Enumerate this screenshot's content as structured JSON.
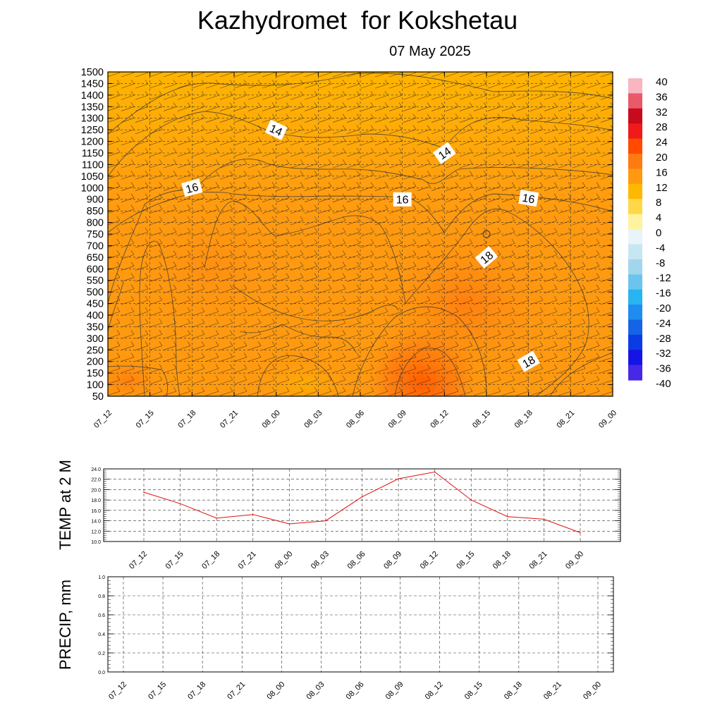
{
  "title": "Kazhydromet  for Kokshetau",
  "subtitle": "07 May 2025",
  "time_labels": [
    "07_12",
    "07_15",
    "07_18",
    "07_21",
    "08_00",
    "08_03",
    "08_06",
    "08_09",
    "08_12",
    "08_15",
    "08_18",
    "08_21",
    "09_00"
  ],
  "chart_data": [
    {
      "type": "heatmap",
      "name": "cross-section",
      "x": [
        "07_12",
        "07_15",
        "07_18",
        "07_21",
        "08_00",
        "08_03",
        "08_06",
        "08_09",
        "08_12",
        "08_15",
        "08_18",
        "08_21",
        "09_00"
      ],
      "y_ticks": [
        50,
        100,
        150,
        200,
        250,
        300,
        350,
        400,
        450,
        500,
        550,
        600,
        650,
        700,
        750,
        800,
        850,
        900,
        1000,
        1050,
        1100,
        1150,
        1200,
        1250,
        1300,
        1350,
        1400,
        1450,
        1500
      ],
      "ylim": [
        50,
        1500
      ],
      "colorbar": {
        "ticks": [
          40,
          36,
          32,
          28,
          24,
          20,
          16,
          12,
          8,
          4,
          0,
          -4,
          -8,
          -12,
          -16,
          -20,
          -24,
          -28,
          -32,
          -36,
          -40
        ],
        "colors": {
          "40": "#f7b6c0",
          "36": "#e85a6a",
          "32": "#c80a1a",
          "28": "#f01a1a",
          "24": "#ff4a00",
          "20": "#ff7a10",
          "16": "#ff9a10",
          "12": "#ffb800",
          "8": "#ffd84a",
          "4": "#fff3a0",
          "0": "#e8f4f8",
          "-4": "#c6e6f2",
          "-8": "#a2d6ee",
          "-12": "#6cc4ee",
          "-16": "#28b4f0",
          "-20": "#1e8cf0",
          "-24": "#1464e6",
          "-28": "#0a3ce6",
          "-32": "#1414e6",
          "-36": "#4628e6",
          "-40": "#7a3ce6"
        }
      },
      "contour_labels": [
        {
          "text": "14",
          "x": "08_00",
          "y": 1250
        },
        {
          "text": "14",
          "x": "08_12",
          "y": 1150
        },
        {
          "text": "16",
          "x": "07_18",
          "y": 1000
        },
        {
          "text": "16",
          "x": "08_09",
          "y": 900
        },
        {
          "text": "16",
          "x": "08_18",
          "y": 910
        },
        {
          "text": "18",
          "x": "08_15",
          "y": 650
        },
        {
          "text": "18",
          "x": "08_18",
          "y": 200
        }
      ],
      "grid": true
    },
    {
      "type": "line",
      "ylabel": "TEMP at 2 M",
      "categories": [
        "07_12",
        "07_15",
        "07_18",
        "07_21",
        "08_00",
        "08_03",
        "08_06",
        "08_09",
        "08_12",
        "08_15",
        "08_18",
        "08_21",
        "09_00"
      ],
      "values": [
        19.5,
        17.3,
        14.5,
        15.2,
        13.4,
        14.0,
        18.6,
        22.1,
        23.4,
        18.0,
        14.8,
        14.3,
        11.7
      ],
      "ylim": [
        10.0,
        24.0
      ],
      "yticks": [
        "24.0",
        "22.0",
        "20.0",
        "18.0",
        "16.0",
        "14.0",
        "12.0",
        "10.0"
      ],
      "color": "#e01010",
      "grid": true
    },
    {
      "type": "line",
      "ylabel": "PRECIP, mm",
      "categories": [
        "07_12",
        "07_15",
        "07_18",
        "07_21",
        "08_00",
        "08_03",
        "08_06",
        "08_09",
        "08_12",
        "08_15",
        "08_18",
        "08_21",
        "09_00"
      ],
      "values": [
        0,
        0,
        0,
        0,
        0,
        0,
        0,
        0,
        0,
        0,
        0,
        0,
        0
      ],
      "ylim": [
        0.0,
        1.0
      ],
      "yticks": [
        "1.0",
        "0.8",
        "0.6",
        "0.4",
        "0.2",
        "0.0"
      ],
      "color": "#1a7a1a",
      "grid": true
    }
  ]
}
